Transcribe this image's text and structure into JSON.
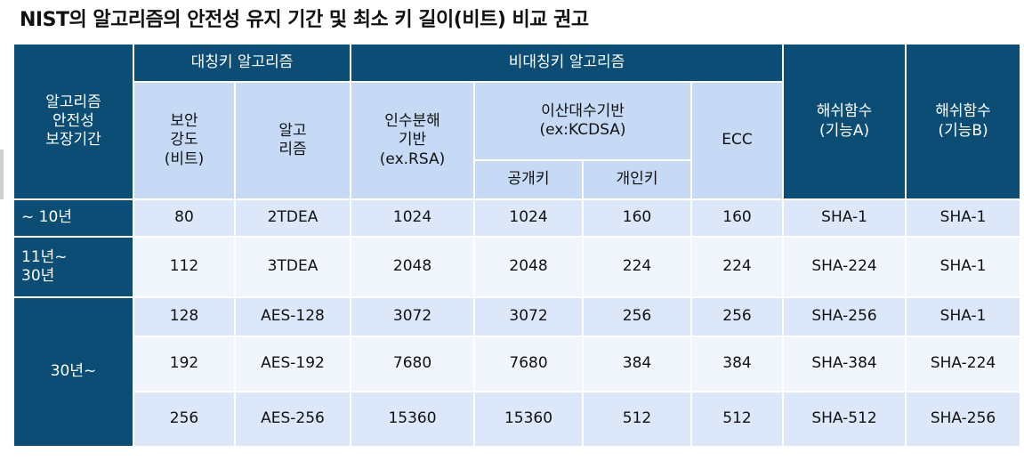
{
  "title": "NIST의 알고리즘의 안전성 유지 기간 및 최소 키 길이(비트) 비교 권고",
  "header": {
    "period": "알고리즘\n안전성\n보장기간",
    "symmetric_group": "대칭키 알고리즘",
    "asymmetric_group": "비대칭키 알고리즘",
    "security_strength": "보안\n강도\n(비트)",
    "algorithm": "알고\n리즘",
    "factoring": "인수분해\n기반\n(ex.RSA)",
    "discrete_log": "이산대수기반\n(ex:KCDSA)",
    "public_key": "공개키",
    "private_key": "개인키",
    "ecc": "ECC",
    "hash_a": "해쉬함수\n(기능A)",
    "hash_b": "해쉬함수\n(기능B)"
  },
  "periods": {
    "p1": "~ 10년",
    "p2": "11년~\n   30년",
    "p3": "30년~"
  },
  "rows": [
    {
      "strength": "80",
      "algorithm": "2TDEA",
      "factoring": "1024",
      "public": "1024",
      "private": "160",
      "ecc": "160",
      "hash_a": "SHA-1",
      "hash_b": "SHA-1"
    },
    {
      "strength": "112",
      "algorithm": "3TDEA",
      "factoring": "2048",
      "public": "2048",
      "private": "224",
      "ecc": "224",
      "hash_a": "SHA-224",
      "hash_b": "SHA-1"
    },
    {
      "strength": "128",
      "algorithm": "AES-128",
      "factoring": "3072",
      "public": "3072",
      "private": "256",
      "ecc": "256",
      "hash_a": "SHA-256",
      "hash_b": "SHA-1"
    },
    {
      "strength": "192",
      "algorithm": "AES-192",
      "factoring": "7680",
      "public": "7680",
      "private": "384",
      "ecc": "384",
      "hash_a": "SHA-384",
      "hash_b": "SHA-224"
    },
    {
      "strength": "256",
      "algorithm": "AES-256",
      "factoring": "15360",
      "public": "15360",
      "private": "512",
      "ecc": "512",
      "hash_a": "SHA-512",
      "hash_b": "SHA-256"
    }
  ],
  "colors": {
    "header_dark": "#0b4d74",
    "header_light": "#c6daf5",
    "row_light": "#dce8f9",
    "row_white": "#f1f6fd"
  }
}
